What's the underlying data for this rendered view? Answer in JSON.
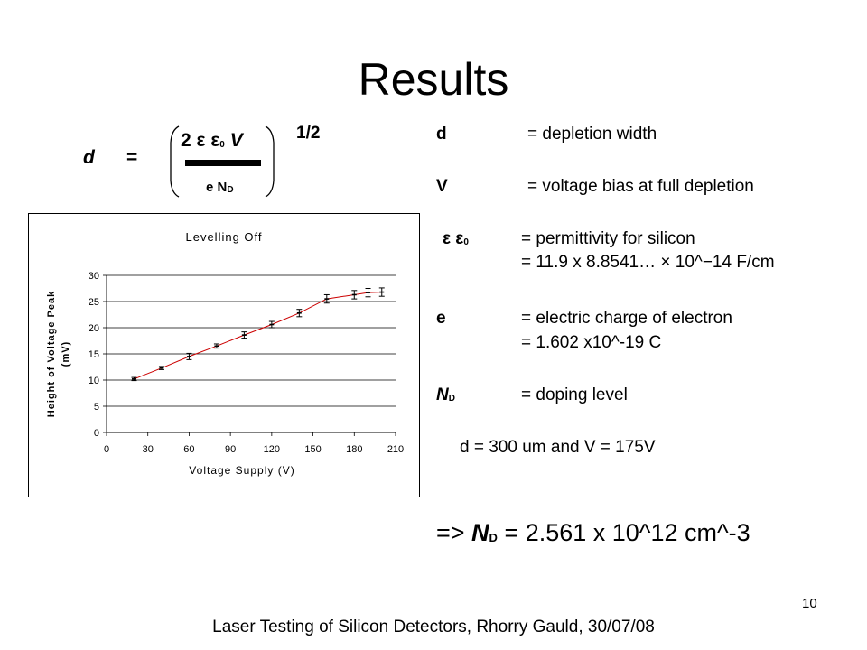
{
  "slide": {
    "title": "Results",
    "footer": "Laser Testing of Silicon Detectors, Rhorry Gauld, 30/07/08",
    "page_number": "10"
  },
  "formula": {
    "lhs": "d",
    "equals": "=",
    "numerator": "2 ε ε",
    "numerator_sub": "0",
    "numerator_var": "V",
    "denominator": "e N",
    "denominator_sub": "D",
    "power": "1/2"
  },
  "definitions": [
    {
      "symbol": "d",
      "text": "= depletion width"
    },
    {
      "symbol": "V",
      "text": "= voltage bias at full depletion"
    },
    {
      "symbol": "ε ε",
      "symbol_sub": "0",
      "text": "= permittivity for silicon",
      "text2": "= 11.9 x 8.8541… × 10^−14 F/cm"
    },
    {
      "symbol": "e",
      "text": "= electric charge of electron",
      "text2": "= 1.602 x10^-19 C"
    },
    {
      "symbol": "N",
      "symbol_sub": "D",
      "text": "= doping level"
    }
  ],
  "given": "d = 300 um and V = 175V",
  "result": {
    "prefix": "=> ",
    "symbol": "N",
    "symbol_sub": "D",
    "value": " = 2.561 x 10^12   cm^-3"
  },
  "chart_data": {
    "type": "scatter",
    "title": "Levelling Off",
    "xlabel": "Voltage Supply (V)",
    "ylabel": "Height of Voltage Peak (mV)",
    "xlim": [
      0,
      210
    ],
    "ylim": [
      0,
      30
    ],
    "xticks": [
      0,
      30,
      60,
      90,
      120,
      150,
      180,
      210
    ],
    "yticks": [
      0,
      5,
      10,
      15,
      20,
      25,
      30
    ],
    "grid": "horizontal",
    "series": [
      {
        "points": [
          {
            "x": 20,
            "y": 10.2,
            "err": 0.3
          },
          {
            "x": 40,
            "y": 12.3,
            "err": 0.3
          },
          {
            "x": 60,
            "y": 14.5,
            "err": 0.6
          },
          {
            "x": 80,
            "y": 16.5,
            "err": 0.4
          },
          {
            "x": 100,
            "y": 18.6,
            "err": 0.6
          },
          {
            "x": 120,
            "y": 20.6,
            "err": 0.6
          },
          {
            "x": 140,
            "y": 22.8,
            "err": 0.7
          },
          {
            "x": 160,
            "y": 25.5,
            "err": 0.8
          },
          {
            "x": 180,
            "y": 26.3,
            "err": 0.8
          },
          {
            "x": 190,
            "y": 26.7,
            "err": 0.8
          },
          {
            "x": 200,
            "y": 26.8,
            "err": 0.8
          }
        ],
        "colors": {
          "markers": "#000000",
          "trend": "#cc0000"
        }
      }
    ],
    "trendline": [
      [
        20,
        10.2
      ],
      [
        40,
        12.3
      ],
      [
        60,
        14.5
      ],
      [
        80,
        16.5
      ],
      [
        100,
        18.6
      ],
      [
        120,
        20.6
      ],
      [
        140,
        22.8
      ],
      [
        160,
        25.5
      ],
      [
        180,
        26.3
      ],
      [
        190,
        26.7
      ],
      [
        200,
        26.8
      ]
    ]
  }
}
